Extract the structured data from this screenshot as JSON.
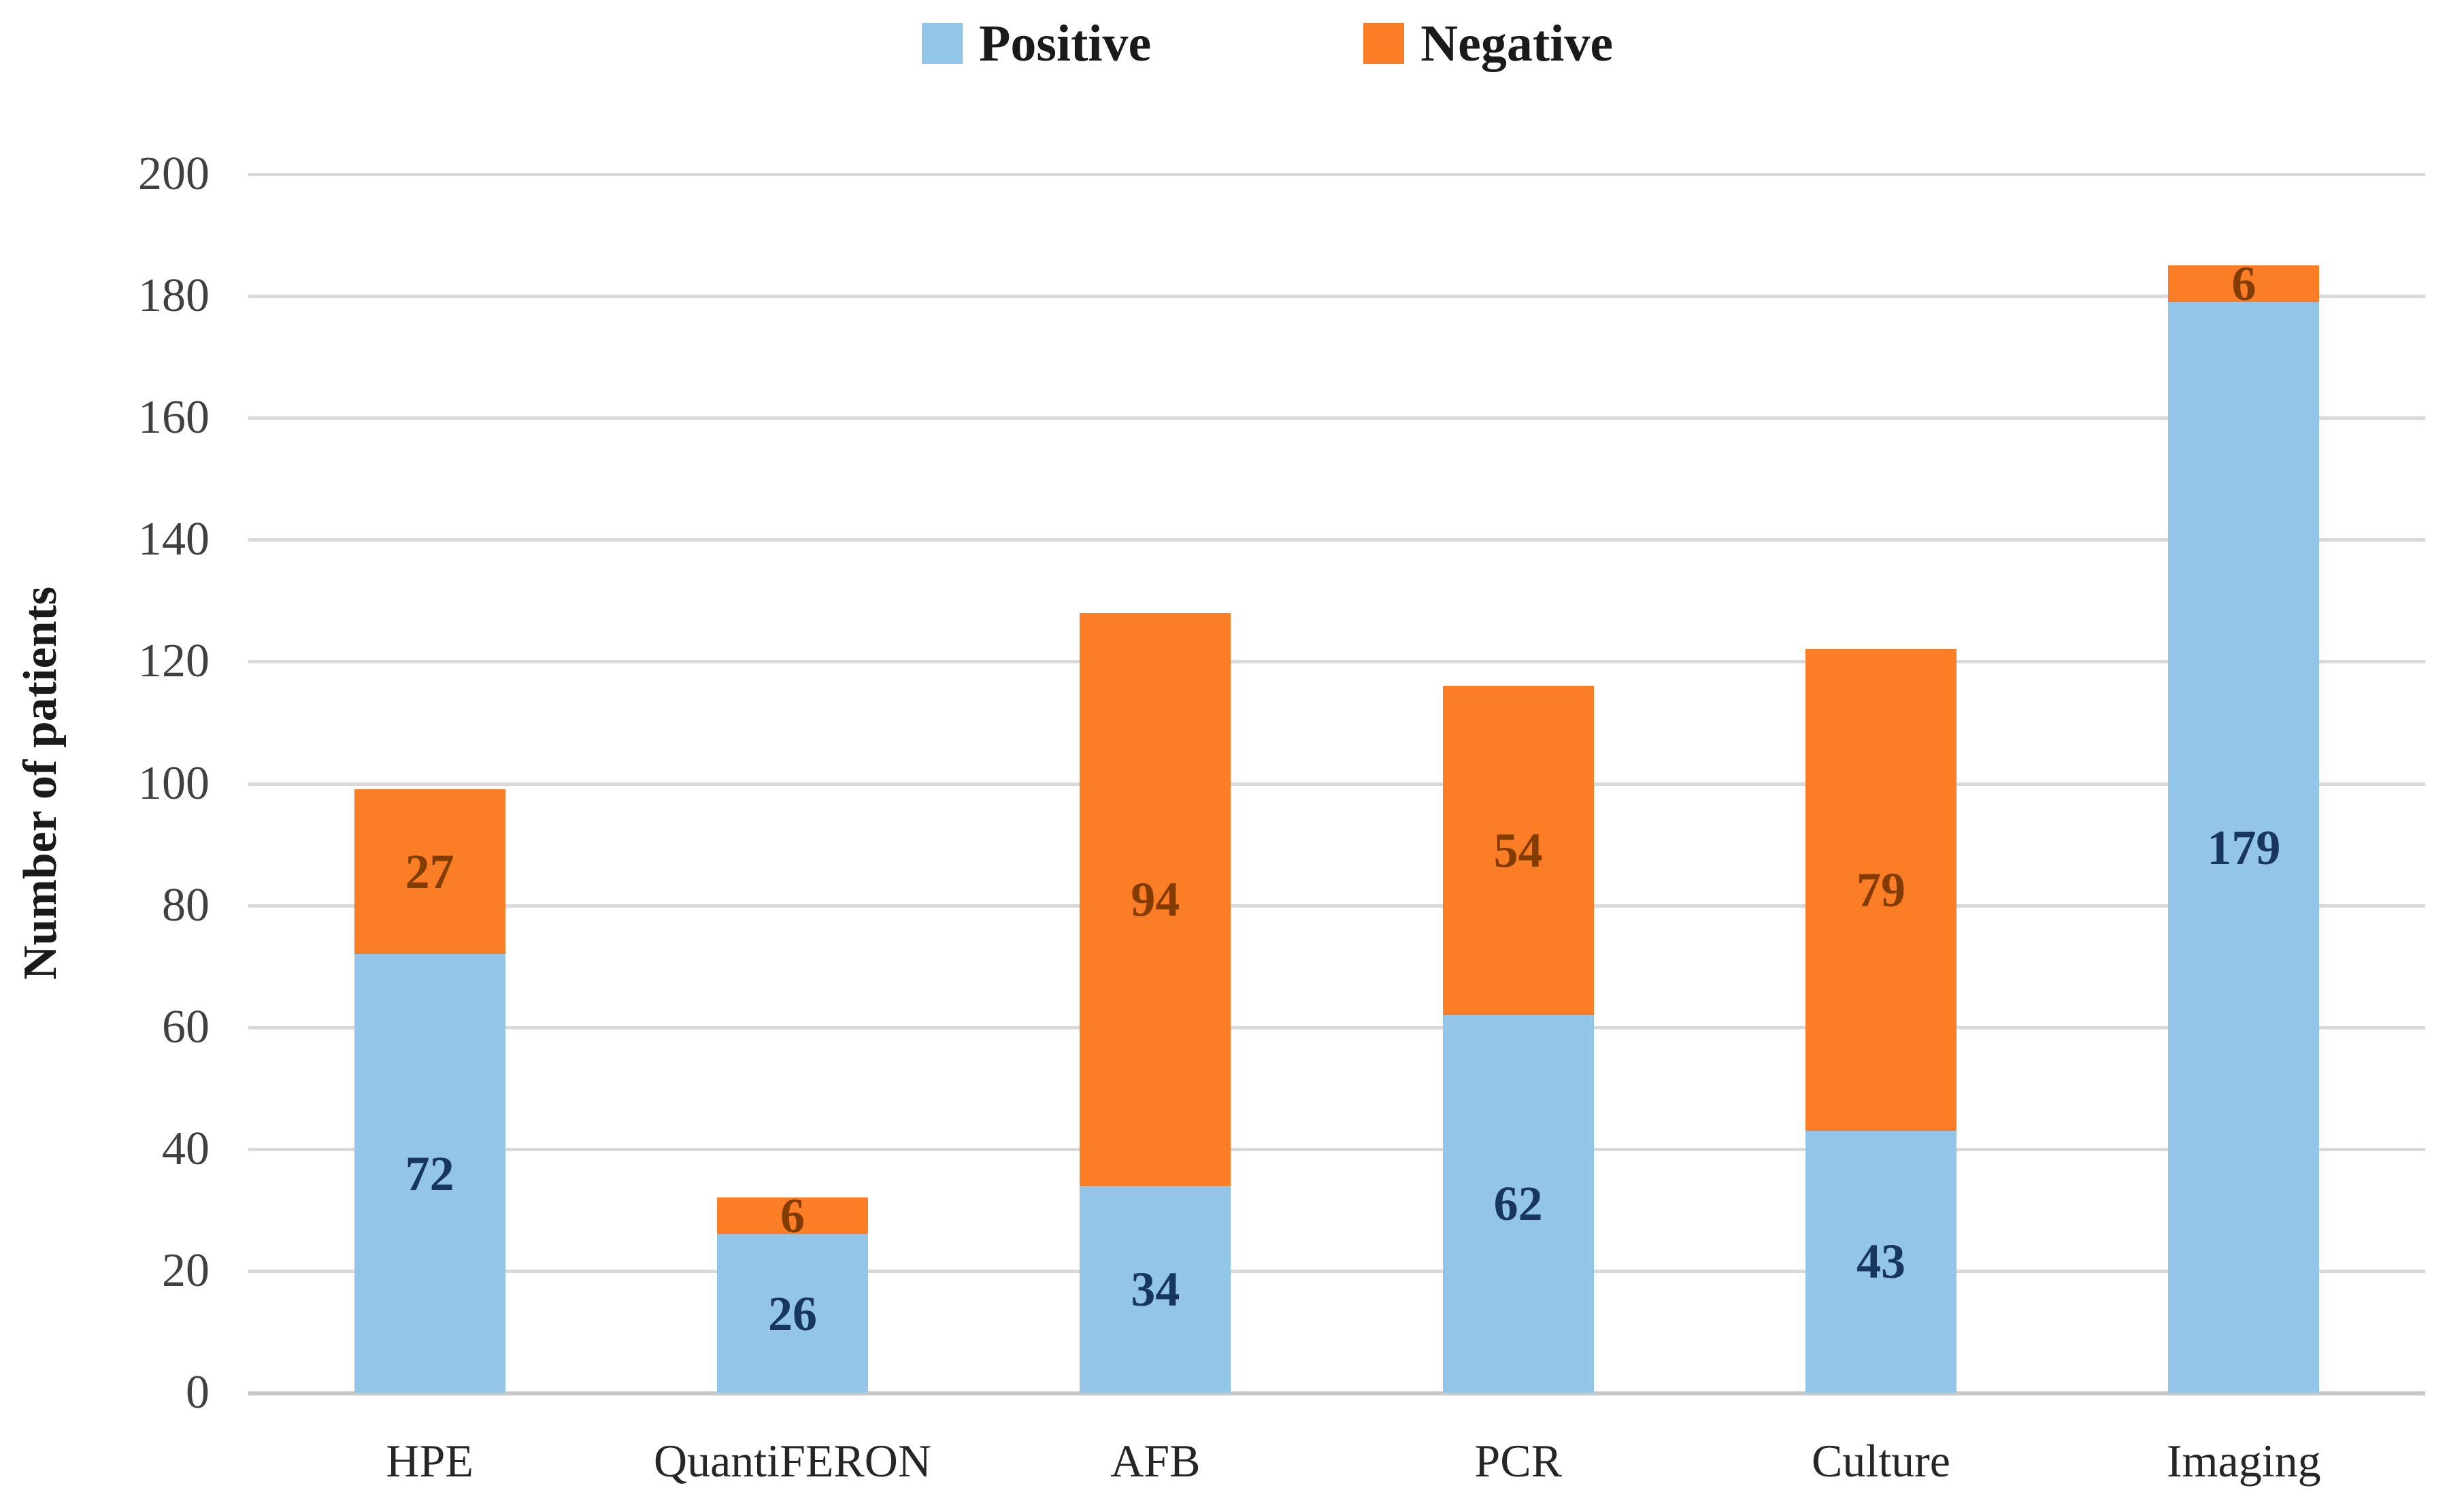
{
  "chart_data": {
    "type": "bar",
    "stacked": true,
    "title": "",
    "categories": [
      "HPE",
      "QuantiFERON",
      "AFB",
      "PCR",
      "Culture",
      "Imaging"
    ],
    "series": [
      {
        "name": "Positive",
        "color": "#92C5E8",
        "label_color": "#17375E",
        "values": [
          72,
          26,
          34,
          62,
          43,
          179
        ]
      },
      {
        "name": "Negative",
        "color": "#FB7D25",
        "label_color": "#833C00",
        "values": [
          27,
          6,
          94,
          54,
          79,
          6
        ]
      }
    ],
    "xlabel": "",
    "ylabel": "Number of patients",
    "ylim": [
      0,
      200
    ],
    "ytick_step": 20,
    "yticks": [
      0,
      20,
      40,
      60,
      80,
      100,
      120,
      140,
      160,
      180,
      200
    ],
    "grid": true,
    "legend_position": "top-center",
    "gridline_color": "#D9D9D9",
    "baseline_color": "#C8C8C8",
    "tick_label_color": "#404040",
    "category_label_color": "#262626",
    "legend_text_color": "#1A1A1A",
    "background_color": "#FFFFFF"
  }
}
